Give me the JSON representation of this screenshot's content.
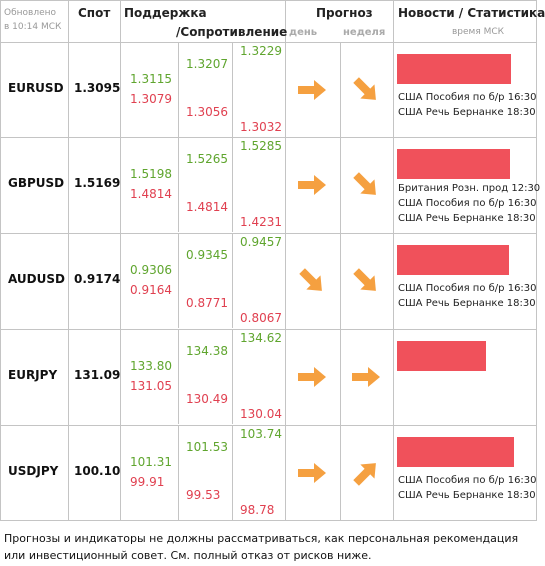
{
  "header": {
    "updated": "Обновлено",
    "time": "в 10:14 МСК",
    "spot": "Спот",
    "support": "Поддержка",
    "resistance": "/Сопротивление",
    "forecast": "Прогноз",
    "day": "день",
    "week": "неделя",
    "news": "Новости / Статистика",
    "time_note": "время МСК"
  },
  "rows": [
    {
      "pair": "EURUSD",
      "spot": "1.3095",
      "levels": [
        [
          "1.3115",
          "1.3079"
        ],
        [
          "1.3207",
          "1.3056"
        ],
        [
          "1.3229",
          "1.3032"
        ]
      ],
      "news": [
        "США Пособия по б/р 16:30",
        "США Речь Бернанке 18:30"
      ]
    },
    {
      "pair": "GBPUSD",
      "spot": "1.5169",
      "levels": [
        [
          "1.5198",
          "1.4814"
        ],
        [
          "1.5265",
          "1.4814"
        ],
        [
          "1.5285",
          "1.4231"
        ]
      ],
      "news": [
        "Британия Розн. прод 12:30",
        "США Пособия по б/р 16:30",
        "США Речь Бернанке 18:30"
      ]
    },
    {
      "pair": "AUDUSD",
      "spot": "0.9174",
      "levels": [
        [
          "0.9306",
          "0.9164"
        ],
        [
          "0.9345",
          "0.8771"
        ],
        [
          "0.9457",
          "0.8067"
        ]
      ],
      "news": [
        "США Пособия по б/р 16:30",
        "США Речь Бернанке 18:30"
      ]
    },
    {
      "pair": "EURJPY",
      "spot": "131.09",
      "levels": [
        [
          "133.80",
          "131.05"
        ],
        [
          "134.38",
          "130.49"
        ],
        [
          "134.62",
          "130.04"
        ]
      ],
      "news": []
    },
    {
      "pair": "USDJPY",
      "spot": "100.10",
      "levels": [
        [
          "101.31",
          "99.91"
        ],
        [
          "101.53",
          "99.53"
        ],
        [
          "103.74",
          "98.78"
        ]
      ],
      "news": [
        "США Пособия по б/р 16:30",
        "США Речь Бернанке 18:30"
      ]
    }
  ],
  "footer": "Прогнозы и индикаторы не должны рассматриваться, как персональная рекомендация или инвестиционный совет. См. полный отказ от рисков ниже."
}
